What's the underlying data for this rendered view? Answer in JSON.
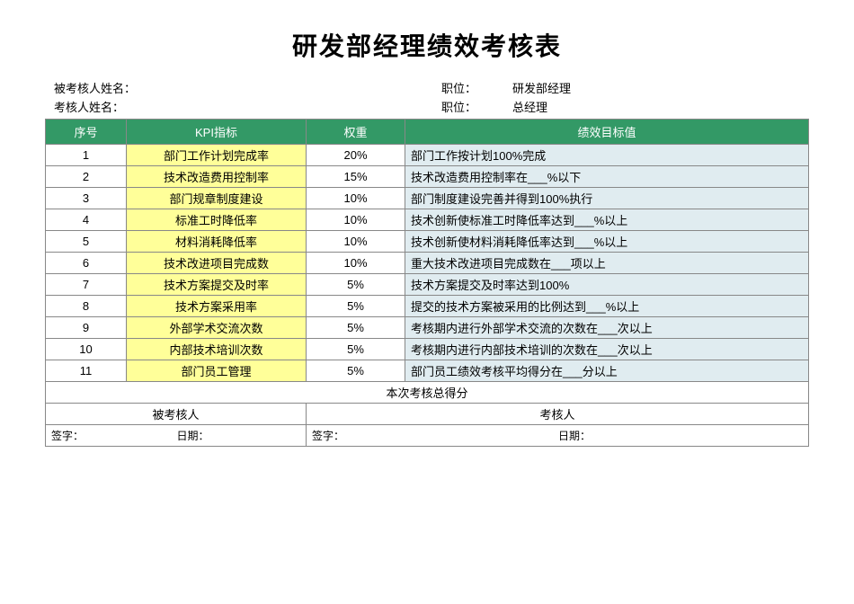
{
  "title": "研发部经理绩效考核表",
  "info": {
    "assessee_label": "被考核人姓名：",
    "assessor_label": "考核人姓名：",
    "position_label": "职位：",
    "assessee_position": "研发部经理",
    "assessor_position": "总经理"
  },
  "headers": {
    "seq": "序号",
    "kpi": "KPI指标",
    "weight": "权重",
    "target": "绩效目标值"
  },
  "rows": [
    {
      "seq": "1",
      "kpi": "部门工作计划完成率",
      "weight": "20%",
      "target": "部门工作按计划100%完成"
    },
    {
      "seq": "2",
      "kpi": "技术改造费用控制率",
      "weight": "15%",
      "target": "技术改造费用控制率在___%以下"
    },
    {
      "seq": "3",
      "kpi": "部门规章制度建设",
      "weight": "10%",
      "target": "部门制度建设完善并得到100%执行"
    },
    {
      "seq": "4",
      "kpi": "标准工时降低率",
      "weight": "10%",
      "target": "技术创新使标准工时降低率达到___%以上"
    },
    {
      "seq": "5",
      "kpi": "材料消耗降低率",
      "weight": "10%",
      "target": "技术创新使材料消耗降低率达到___%以上"
    },
    {
      "seq": "6",
      "kpi": "技术改进项目完成数",
      "weight": "10%",
      "target": "重大技术改进项目完成数在___项以上"
    },
    {
      "seq": "7",
      "kpi": "技术方案提交及时率",
      "weight": "5%",
      "target": "技术方案提交及时率达到100%"
    },
    {
      "seq": "8",
      "kpi": "技术方案采用率",
      "weight": "5%",
      "target": "提交的技术方案被采用的比例达到___%以上"
    },
    {
      "seq": "9",
      "kpi": "外部学术交流次数",
      "weight": "5%",
      "target": "考核期内进行外部学术交流的次数在___次以上"
    },
    {
      "seq": "10",
      "kpi": "内部技术培训次数",
      "weight": "5%",
      "target": "考核期内进行内部技术培训的次数在___次以上"
    },
    {
      "seq": "11",
      "kpi": "部门员工管理",
      "weight": "5%",
      "target": "部门员工绩效考核平均得分在___分以上"
    }
  ],
  "footer": {
    "total_label": "本次考核总得分",
    "assessee_sign_header": "被考核人",
    "assessor_sign_header": "考核人",
    "sign_label": "签字：",
    "date_label": "日期："
  },
  "colors": {
    "header_bg": "#339966",
    "header_fg": "#ffffff",
    "kpi_bg": "#ffff99",
    "target_bg": "#e0ecf0",
    "border": "#888888"
  }
}
